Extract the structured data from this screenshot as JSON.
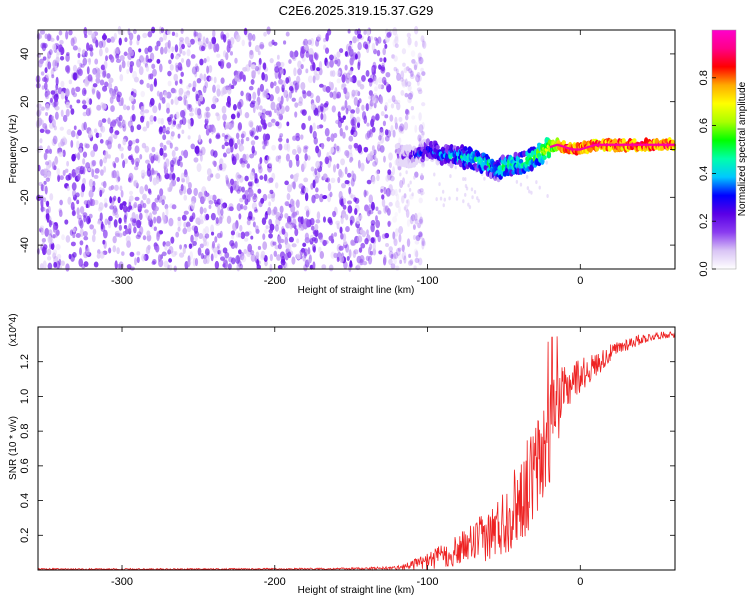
{
  "title": "C2E6.2025.319.15.37.G29",
  "chart_data": [
    {
      "type": "heatmap",
      "xlabel": "Height of straight line (km)",
      "ylabel": "Frequency (Hz)",
      "xlim": [
        -355,
        62
      ],
      "ylim": [
        -50,
        50
      ],
      "xticks": [
        -300,
        -200,
        -100,
        0
      ],
      "xtick_labels": [
        "-300",
        "-200",
        "-100",
        "0"
      ],
      "yticks": [
        -40,
        -20,
        0,
        20,
        40
      ],
      "ytick_labels": [
        "-40",
        "-20",
        "0",
        "20",
        "40"
      ],
      "colorbar": {
        "label": "Normalized spectral amplitude",
        "range": [
          0,
          1
        ],
        "ticks": [
          0,
          0.2,
          0.4,
          0.6,
          0.8
        ],
        "tick_labels": [
          "0.0",
          "0.2",
          "0.4",
          "0.6",
          "0.8"
        ],
        "colors": [
          "#ffffff",
          "#d9c4f5",
          "#8a3cf0",
          "#5a00e6",
          "#0000ff",
          "#00c8ff",
          "#00ffaa",
          "#00ff00",
          "#aaff00",
          "#ffff00",
          "#ffaa00",
          "#ff0000",
          "#ff0088",
          "#ff00cc"
        ]
      },
      "ridge": {
        "x": [
          -120,
          -110,
          -100,
          -90,
          -80,
          -70,
          -60,
          -55,
          -50,
          -45,
          -40,
          -35,
          -30,
          -25,
          -20,
          -15,
          -10,
          -5,
          0,
          5,
          10,
          20,
          30,
          40,
          50,
          62
        ],
        "y": [
          -2,
          -3,
          0,
          -2,
          -3,
          -4,
          -6,
          -9,
          -7,
          -6,
          -6,
          -5,
          -3,
          -1,
          1,
          2,
          1,
          0,
          0,
          1,
          2,
          2,
          2,
          2,
          2,
          2
        ],
        "amplitude": [
          0.2,
          0.35,
          0.4,
          0.45,
          0.5,
          0.55,
          0.55,
          0.45,
          0.6,
          0.6,
          0.55,
          0.6,
          0.65,
          0.7,
          0.75,
          0.85,
          0.9,
          0.95,
          0.95,
          0.9,
          0.95,
          0.95,
          0.95,
          0.95,
          0.95,
          0.95
        ]
      },
      "noise_region_x": [
        -355,
        -110
      ],
      "noise_amplitude": [
        0.05,
        0.22
      ]
    },
    {
      "type": "line",
      "xlabel": "Height of straight line (km)",
      "ylabel": "SNR (10 * v/v)",
      "y_multiplier": "(x10^4)",
      "xlim": [
        -355,
        62
      ],
      "ylim": [
        0,
        1.4
      ],
      "xticks": [
        -300,
        -200,
        -100,
        0
      ],
      "xtick_labels": [
        "-300",
        "-200",
        "-100",
        "0"
      ],
      "yticks": [
        0.2,
        0.4,
        0.6,
        0.8,
        1.0,
        1.2
      ],
      "ytick_labels": [
        "0.2",
        "0.4",
        "0.6",
        "0.8",
        "1.0",
        "1.2"
      ],
      "color": "#ee2222",
      "series": [
        {
          "x": [
            -355,
            -300,
            -250,
            -200,
            -150,
            -120,
            -110,
            -100,
            -90,
            -80,
            -70,
            -60,
            -50,
            -40,
            -30,
            -25,
            -20,
            -15,
            -10,
            -5,
            0,
            10,
            20,
            30,
            40,
            50,
            62
          ],
          "y": [
            0.005,
            0.005,
            0.005,
            0.006,
            0.008,
            0.012,
            0.03,
            0.05,
            0.08,
            0.11,
            0.16,
            0.2,
            0.28,
            0.4,
            0.55,
            0.65,
            0.8,
            0.95,
            1.02,
            1.1,
            1.12,
            1.18,
            1.25,
            1.3,
            1.33,
            1.35,
            1.36
          ],
          "noise": [
            0.004,
            0.004,
            0.004,
            0.004,
            0.005,
            0.01,
            0.03,
            0.05,
            0.07,
            0.09,
            0.12,
            0.15,
            0.2,
            0.25,
            0.3,
            0.32,
            0.3,
            0.22,
            0.15,
            0.12,
            0.1,
            0.07,
            0.05,
            0.04,
            0.03,
            0.02,
            0.02
          ]
        }
      ]
    }
  ]
}
